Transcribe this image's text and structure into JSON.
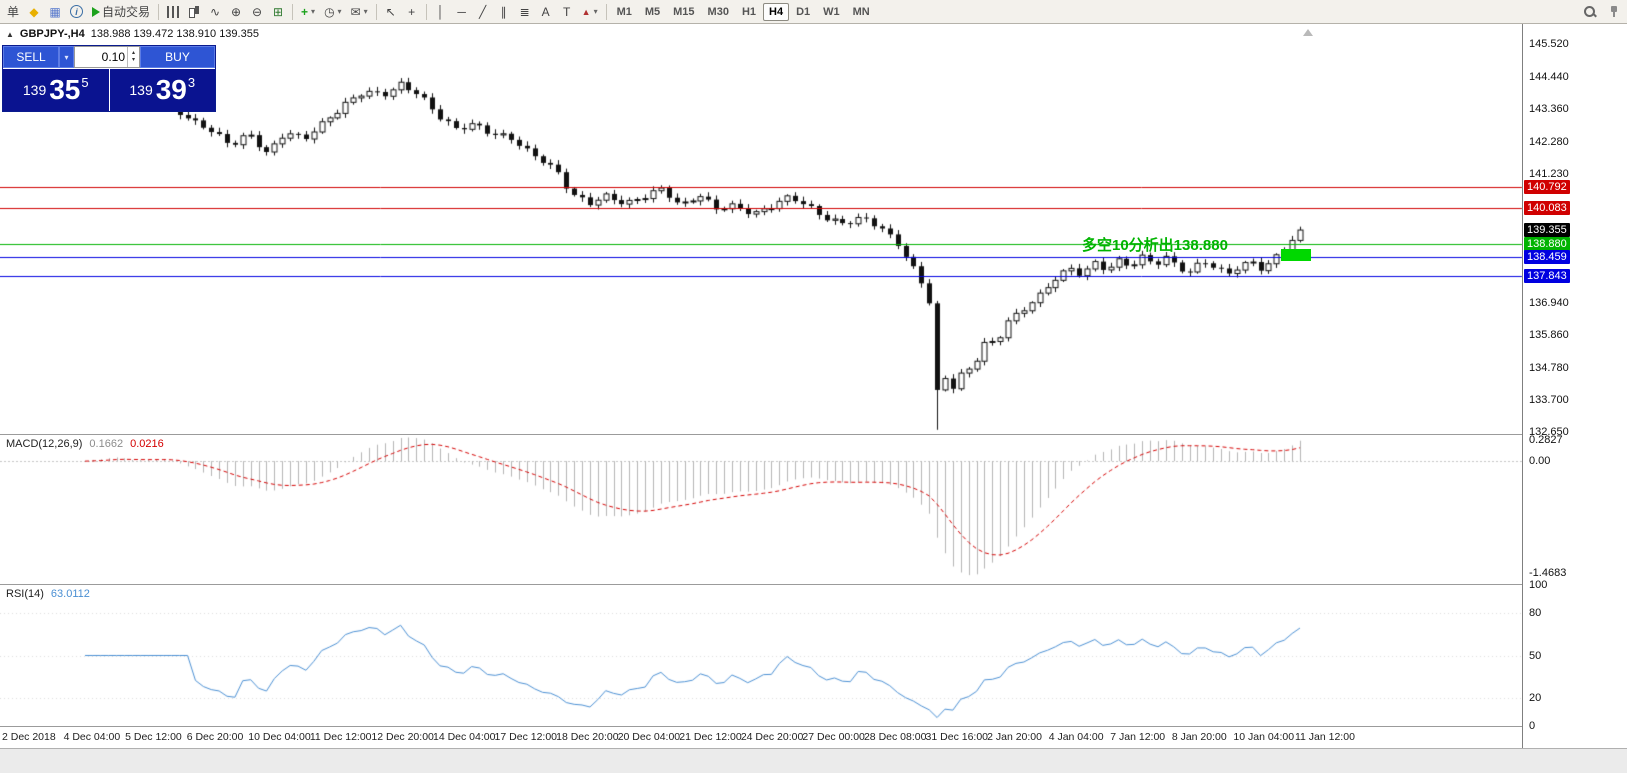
{
  "toolbar": {
    "new_order_label": "单",
    "autotrading_label": "自动交易",
    "timeframes": [
      "M1",
      "M5",
      "M15",
      "M30",
      "H1",
      "H4",
      "D1",
      "W1",
      "MN"
    ],
    "active_timeframe": "H4",
    "icons": {
      "symbols": "◆",
      "chart_window": "▦",
      "info": "i",
      "line_chart": "∿",
      "zoom_in": "⊕",
      "zoom_out": "⊖",
      "tile_windows": "⊞",
      "indicators": "+",
      "periods": "◷",
      "templates": "✉",
      "cursor": "↖",
      "crosshair": "+",
      "vline": "│",
      "hline": "─",
      "trendline": "╱",
      "channel": "∥",
      "fibonacci": "≣",
      "text": "A",
      "text_label": "T",
      "arrows": "▲",
      "dropdown": "▾",
      "spin_up": "▴",
      "spin_down": "▾"
    }
  },
  "chart_header": {
    "collapse": "▲",
    "symbol_tf": "GBPJPY-,H4",
    "ohlc": "138.988 139.472 138.910 139.355"
  },
  "trade_panel": {
    "sell_label": "SELL",
    "buy_label": "BUY",
    "lot": "0.10",
    "sell_price": {
      "prefix": "139",
      "big": "35",
      "sup": "5"
    },
    "buy_price": {
      "prefix": "139",
      "big": "39",
      "sup": "3"
    }
  },
  "annotation": {
    "text": "多空10分析出138.880",
    "color": "#00b400"
  },
  "price_axis": {
    "labels": [
      "145.520",
      "144.440",
      "143.360",
      "142.280",
      "141.230",
      "136.940",
      "135.860",
      "134.780",
      "133.700",
      "132.650"
    ]
  },
  "macd": {
    "label": "MACD(12,26,9)",
    "value_main": "0.1662",
    "value_signal": "0.0216",
    "scale": [
      "0.2827",
      "0.00",
      "-1.4683"
    ]
  },
  "rsi": {
    "label": "RSI(14)",
    "value": "63.0112",
    "scale": [
      "100",
      "80",
      "50",
      "20",
      "0"
    ]
  },
  "time_axis": [
    "2 Dec 2018",
    "4 Dec 04:00",
    "5 Dec 12:00",
    "6 Dec 20:00",
    "10 Dec 04:00",
    "11 Dec 12:00",
    "12 Dec 20:00",
    "14 Dec 04:00",
    "17 Dec 12:00",
    "18 Dec 20:00",
    "20 Dec 04:00",
    "21 Dec 12:00",
    "24 Dec 20:00",
    "27 Dec 00:00",
    "28 Dec 08:00",
    "31 Dec 16:00",
    "2 Jan 20:00",
    "4 Jan 04:00",
    "7 Jan 12:00",
    "8 Jan 20:00",
    "10 Jan 04:00",
    "11 Jan 12:00"
  ],
  "chart_data": {
    "type": "candlestick",
    "symbol": "GBPJPY-",
    "timeframe": "H4",
    "bars": 155,
    "ylim": [
      132.58,
      146.2
    ],
    "current_price": 139.355,
    "hlines": [
      {
        "price": 140.792,
        "color": "#d00000"
      },
      {
        "price": 140.083,
        "color": "#d00000"
      },
      {
        "price": 138.88,
        "color": "#00b300"
      },
      {
        "price": 138.459,
        "color": "#0000e0"
      },
      {
        "price": 137.843,
        "color": "#0000e0"
      }
    ],
    "anchors": [
      [
        0,
        143.55
      ],
      [
        0.02,
        143.9
      ],
      [
        0.04,
        143.55
      ],
      [
        0.06,
        143.75
      ],
      [
        0.08,
        143.2
      ],
      [
        0.1,
        142.8
      ],
      [
        0.12,
        142.1
      ],
      [
        0.135,
        142.55
      ],
      [
        0.15,
        141.95
      ],
      [
        0.165,
        142.6
      ],
      [
        0.18,
        142.3
      ],
      [
        0.2,
        143.1
      ],
      [
        0.215,
        143.6
      ],
      [
        0.23,
        143.9
      ],
      [
        0.245,
        143.8
      ],
      [
        0.26,
        144.25
      ],
      [
        0.275,
        143.9
      ],
      [
        0.29,
        143.1
      ],
      [
        0.305,
        142.7
      ],
      [
        0.32,
        142.95
      ],
      [
        0.335,
        142.55
      ],
      [
        0.35,
        142.35
      ],
      [
        0.365,
        141.95
      ],
      [
        0.38,
        141.65
      ],
      [
        0.39,
        141.25
      ],
      [
        0.4,
        140.5
      ],
      [
        0.415,
        140.2
      ],
      [
        0.43,
        140.55
      ],
      [
        0.445,
        140.25
      ],
      [
        0.46,
        140.4
      ],
      [
        0.475,
        140.7
      ],
      [
        0.49,
        140.2
      ],
      [
        0.505,
        140.55
      ],
      [
        0.52,
        140.0
      ],
      [
        0.535,
        140.15
      ],
      [
        0.55,
        139.95
      ],
      [
        0.565,
        140.15
      ],
      [
        0.58,
        140.4
      ],
      [
        0.595,
        140.15
      ],
      [
        0.61,
        139.8
      ],
      [
        0.625,
        139.55
      ],
      [
        0.64,
        139.7
      ],
      [
        0.655,
        139.45
      ],
      [
        0.668,
        139.0
      ],
      [
        0.678,
        138.35
      ],
      [
        0.688,
        137.6
      ],
      [
        0.695,
        136.9
      ],
      [
        0.701,
        133.9
      ],
      [
        0.707,
        134.45
      ],
      [
        0.713,
        134.1
      ],
      [
        0.72,
        134.6
      ],
      [
        0.73,
        134.8
      ],
      [
        0.74,
        135.6
      ],
      [
        0.75,
        135.5
      ],
      [
        0.76,
        136.35
      ],
      [
        0.77,
        136.6
      ],
      [
        0.78,
        137.1
      ],
      [
        0.79,
        137.35
      ],
      [
        0.8,
        137.8
      ],
      [
        0.81,
        138.0
      ],
      [
        0.82,
        137.85
      ],
      [
        0.83,
        138.3
      ],
      [
        0.84,
        138.1
      ],
      [
        0.85,
        138.35
      ],
      [
        0.86,
        138.1
      ],
      [
        0.87,
        138.4
      ],
      [
        0.88,
        138.2
      ],
      [
        0.89,
        138.5
      ],
      [
        0.9,
        138.15
      ],
      [
        0.91,
        137.95
      ],
      [
        0.92,
        138.3
      ],
      [
        0.93,
        138.05
      ],
      [
        0.94,
        137.9
      ],
      [
        0.95,
        138.2
      ],
      [
        0.96,
        138.35
      ],
      [
        0.97,
        138.0
      ],
      [
        0.98,
        138.4
      ],
      [
        0.99,
        138.8
      ],
      [
        1,
        139.35
      ]
    ],
    "indicators": [
      {
        "type": "macd",
        "params": [
          12,
          26,
          9
        ],
        "ylim": [
          -1.56,
          0.33
        ]
      },
      {
        "type": "rsi",
        "params": [
          14
        ],
        "ylim": [
          0,
          100
        ]
      }
    ]
  }
}
